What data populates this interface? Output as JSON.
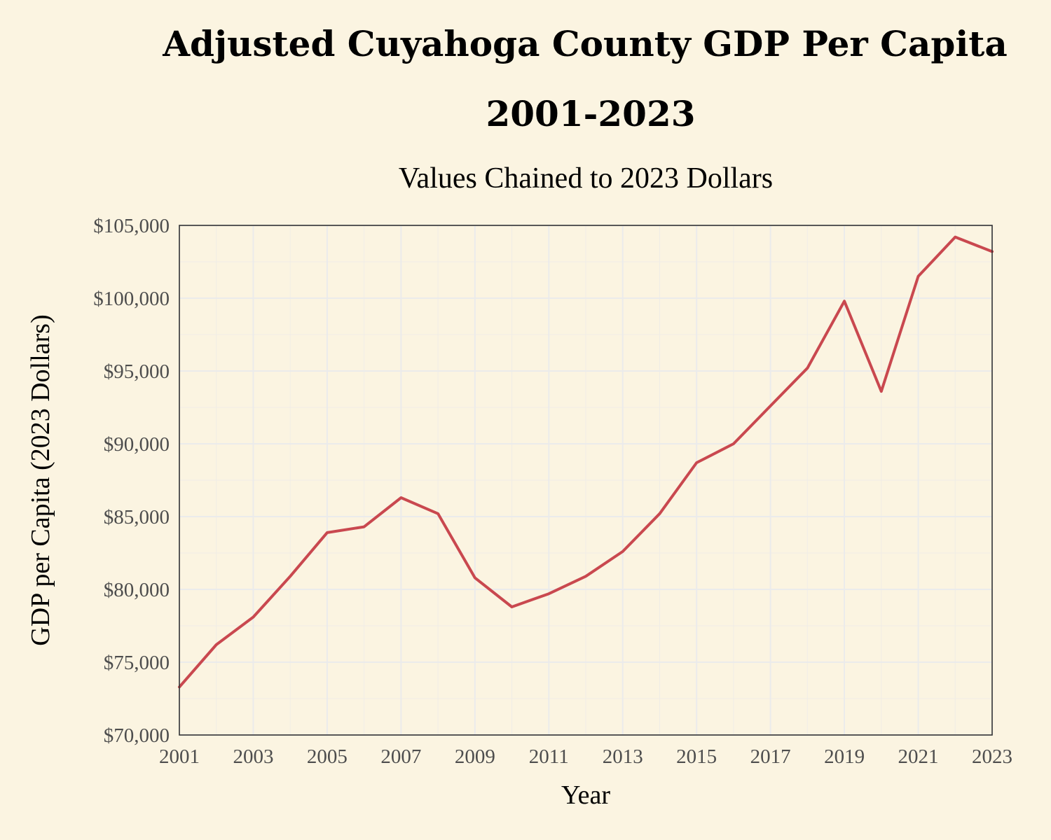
{
  "chart_data": {
    "type": "line",
    "title_line1": "Adjusted Cuyahoga County GDP Per Capita",
    "title_line2": "2001-2023",
    "subtitle": "Values Chained to 2023 Dollars",
    "xlabel": "Year",
    "ylabel": "GDP per Capita (2023 Dollars)",
    "xlim": [
      2001,
      2023
    ],
    "ylim": [
      70000,
      105000
    ],
    "x_ticks": [
      2001,
      2003,
      2005,
      2007,
      2009,
      2011,
      2013,
      2015,
      2017,
      2019,
      2021,
      2023
    ],
    "y_ticks": [
      70000,
      75000,
      80000,
      85000,
      90000,
      95000,
      100000,
      105000
    ],
    "y_tick_labels": [
      "$70,000",
      "$75,000",
      "$80,000",
      "$85,000",
      "$90,000",
      "$95,000",
      "$100,000",
      "$105,000"
    ],
    "grid": true,
    "legend": "none",
    "series": [
      {
        "name": "GDP per Capita",
        "color": "#c9484f",
        "x": [
          2001,
          2002,
          2003,
          2004,
          2005,
          2006,
          2007,
          2008,
          2009,
          2010,
          2011,
          2012,
          2013,
          2014,
          2015,
          2016,
          2017,
          2018,
          2019,
          2020,
          2021,
          2022,
          2023
        ],
        "values": [
          73300,
          76200,
          78100,
          80900,
          83900,
          84300,
          86300,
          85200,
          80800,
          78800,
          79700,
          80900,
          82600,
          85200,
          88700,
          90000,
          92600,
          95200,
          99800,
          93600,
          101500,
          104200,
          103200
        ]
      }
    ]
  }
}
